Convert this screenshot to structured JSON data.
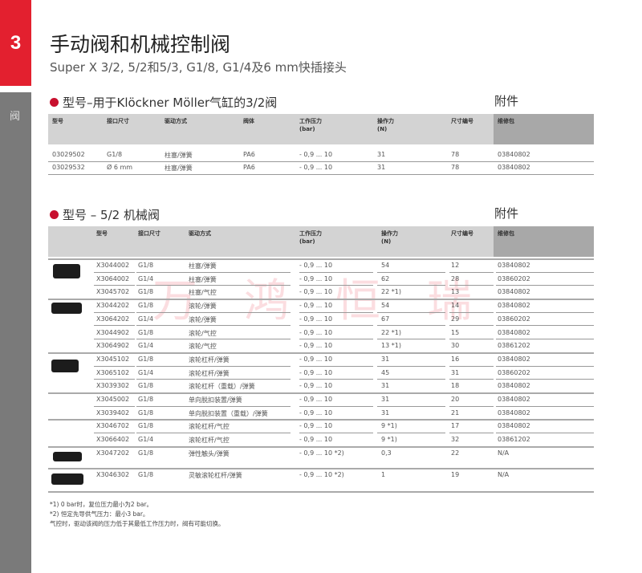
{
  "chapter": "3",
  "side_icon": "阀",
  "title": "手动阀和机械控制阀",
  "subtitle": "Super X  3/2, 5/2和5/3, G1/8, G1/4及6 mm快插接头",
  "watermark": "万鸿恒瑞",
  "colors": {
    "accent": "#e3202f",
    "bullet": "#c8102e",
    "sidebar": "#7a7a7a",
    "header": "#d3d3d3",
    "header_dark": "#a8a8a8"
  },
  "section1": {
    "title": "型号–用于Klöckner Möller气缸的3/2阀",
    "accessory": "附件",
    "headers": [
      "型号",
      "接口尺寸",
      "驱动方式",
      "阀体",
      "工作压力\n(bar)",
      "操作力\n(N)",
      "尺寸编号",
      "维修包"
    ],
    "rows": [
      [
        "03029502",
        "G1/8",
        "柱塞/弹簧",
        "PA6",
        "- 0,9 ... 10",
        "31",
        "78",
        "03840802"
      ],
      [
        "03029532",
        "Ø 6 mm",
        "柱塞/弹簧",
        "PA6",
        "- 0,9 ... 10",
        "31",
        "78",
        "03840802"
      ]
    ]
  },
  "section2": {
    "title": "型号 – 5/2 机械阀",
    "accessory": "附件",
    "headers": [
      "型号",
      "接口尺寸",
      "驱动方式",
      "工作压力\n(bar)",
      "操作力\n(N)",
      "尺寸编号",
      "维修包"
    ],
    "rows": [
      [
        "X3044002",
        "G1/8",
        "柱塞/弹簧",
        "- 0,9 ... 10",
        "54",
        "12",
        "03840802"
      ],
      [
        "X3064002",
        "G1/4",
        "柱塞/弹簧",
        "- 0,9 ... 10",
        "62",
        "28",
        "03860202"
      ],
      [
        "X3045702",
        "G1/8",
        "柱塞/气控",
        "- 0,9 ... 10",
        "22 *1)",
        "13",
        "03840802"
      ],
      [
        "X3044202",
        "G1/8",
        "滚轮/弹簧",
        "- 0,9 ... 10",
        "54",
        "14",
        "03840802"
      ],
      [
        "X3064202",
        "G1/4",
        "滚轮/弹簧",
        "- 0,9 ... 10",
        "67",
        "29",
        "03860202"
      ],
      [
        "X3044902",
        "G1/8",
        "滚轮/气控",
        "- 0,9 ... 10",
        "22 *1)",
        "15",
        "03840802"
      ],
      [
        "X3064902",
        "G1/4",
        "滚轮/气控",
        "- 0,9 ... 10",
        "13 *1)",
        "30",
        "03861202"
      ],
      [
        "X3045102",
        "G1/8",
        "滚轮杠杆/弹簧",
        "- 0,9 ... 10",
        "31",
        "16",
        "03840802"
      ],
      [
        "X3065102",
        "G1/4",
        "滚轮杠杆/弹簧",
        "- 0,9 ... 10",
        "45",
        "31",
        "03860202"
      ],
      [
        "X3039302",
        "G1/8",
        "滚轮杠杆（重载）/弹簧",
        "- 0,9 ... 10",
        "31",
        "18",
        "03840802"
      ],
      [
        "X3045002",
        "G1/8",
        "单向脱扣装置/弹簧",
        "- 0,9 ... 10",
        "31",
        "20",
        "03840802"
      ],
      [
        "X3039402",
        "G1/8",
        "单向脱扣装置（重载）/弹簧",
        "- 0,9 ... 10",
        "31",
        "21",
        "03840802"
      ],
      [
        "X3046702",
        "G1/8",
        "滚轮杠杆/气控",
        "- 0,9 ... 10",
        "9 *1)",
        "17",
        "03840802"
      ],
      [
        "X3066402",
        "G1/4",
        "滚轮杠杆/气控",
        "- 0,9 ... 10",
        "9 *1)",
        "32",
        "03861202"
      ],
      [
        "X3047202",
        "G1/8",
        "弹性触头/弹簧",
        "- 0,9 ... 10 *2)",
        "0,3",
        "22",
        "N/A"
      ],
      [
        "X3046302",
        "G1/8",
        "灵敏滚轮杠杆/弹簧",
        "- 0,9 ... 10 *2)",
        "1",
        "19",
        "N/A"
      ]
    ]
  },
  "footnotes": [
    "*1) 0 bar时，复位压力最小为2 bar。",
    "*2) 恒定先导供气压力：最小3 bar。",
    "气控时，驱动该阀的压力低于其最低工作压力时，阀有可能切换。"
  ]
}
